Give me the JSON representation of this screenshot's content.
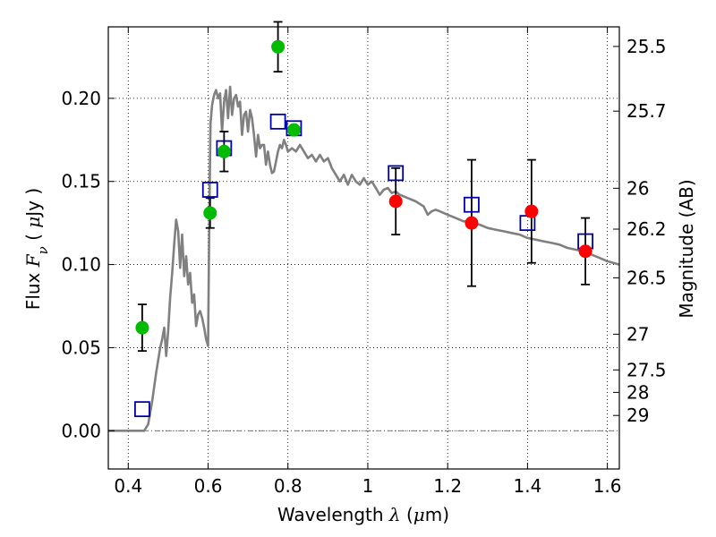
{
  "chart_data": {
    "type": "scatter",
    "title": "",
    "xlabel": {
      "text": "Wavelength",
      "symbol": "λ",
      "unit_open": "(",
      "unit_mu": "μ",
      "unit_rest": "m)"
    },
    "ylabel": {
      "text": "Flux",
      "symbol": "F",
      "subscript": "ν",
      "unit_open": "(",
      "unit_mu": "μ",
      "unit_rest": "Jy )"
    },
    "ylabel_right": "Magnitude (AB)",
    "xlim": [
      0.35,
      1.63
    ],
    "ylim": [
      -0.023,
      0.243
    ],
    "grid": true,
    "x_ticks": [
      0.4,
      0.6,
      0.8,
      1.0,
      1.2,
      1.4,
      1.6
    ],
    "x_tick_labels": [
      "0.4",
      "0.6",
      "0.8",
      "1",
      "1.2",
      "1.4",
      "1.6"
    ],
    "y_ticks": [
      0.0,
      0.05,
      0.1,
      0.15,
      0.2
    ],
    "y_tick_labels": [
      "0.00",
      "0.05",
      "0.10",
      "0.15",
      "0.20"
    ],
    "mag_ticks": [
      {
        "label": "25.5",
        "flux": 0.2312
      },
      {
        "label": "25.7",
        "flux": 0.1923
      },
      {
        "label": "26",
        "flux": 0.1459
      },
      {
        "label": "26.2",
        "flux": 0.1213
      },
      {
        "label": "26.5",
        "flux": 0.092
      },
      {
        "label": "27",
        "flux": 0.0581
      },
      {
        "label": "27.5",
        "flux": 0.0366
      },
      {
        "label": "28",
        "flux": 0.0231
      },
      {
        "label": "29",
        "flux": 0.0092
      }
    ],
    "zero_line": 0.0,
    "model_spectrum": {
      "color": "#808080",
      "points": [
        [
          0.35,
          0.0
        ],
        [
          0.44,
          0.0
        ],
        [
          0.45,
          0.004
        ],
        [
          0.46,
          0.018
        ],
        [
          0.47,
          0.035
        ],
        [
          0.48,
          0.05
        ],
        [
          0.485,
          0.055
        ],
        [
          0.49,
          0.062
        ],
        [
          0.495,
          0.045
        ],
        [
          0.5,
          0.06
        ],
        [
          0.505,
          0.08
        ],
        [
          0.51,
          0.095
        ],
        [
          0.515,
          0.112
        ],
        [
          0.52,
          0.127
        ],
        [
          0.525,
          0.12
        ],
        [
          0.53,
          0.098
        ],
        [
          0.535,
          0.118
        ],
        [
          0.54,
          0.093
        ],
        [
          0.545,
          0.105
        ],
        [
          0.55,
          0.088
        ],
        [
          0.555,
          0.095
        ],
        [
          0.56,
          0.077
        ],
        [
          0.565,
          0.082
        ],
        [
          0.57,
          0.063
        ],
        [
          0.575,
          0.07
        ],
        [
          0.58,
          0.072
        ],
        [
          0.585,
          0.068
        ],
        [
          0.59,
          0.062
        ],
        [
          0.595,
          0.055
        ],
        [
          0.6,
          0.051
        ],
        [
          0.603,
          0.13
        ],
        [
          0.606,
          0.185
        ],
        [
          0.61,
          0.196
        ],
        [
          0.615,
          0.202
        ],
        [
          0.62,
          0.205
        ],
        [
          0.625,
          0.2
        ],
        [
          0.63,
          0.203
        ],
        [
          0.635,
          0.18
        ],
        [
          0.64,
          0.198
        ],
        [
          0.645,
          0.205
        ],
        [
          0.65,
          0.188
        ],
        [
          0.655,
          0.207
        ],
        [
          0.66,
          0.19
        ],
        [
          0.665,
          0.2
        ],
        [
          0.67,
          0.202
        ],
        [
          0.675,
          0.195
        ],
        [
          0.68,
          0.198
        ],
        [
          0.685,
          0.178
        ],
        [
          0.69,
          0.19
        ],
        [
          0.695,
          0.192
        ],
        [
          0.7,
          0.18
        ],
        [
          0.705,
          0.193
        ],
        [
          0.71,
          0.188
        ],
        [
          0.715,
          0.178
        ],
        [
          0.72,
          0.165
        ],
        [
          0.725,
          0.178
        ],
        [
          0.73,
          0.17
        ],
        [
          0.735,
          0.172
        ],
        [
          0.74,
          0.172
        ],
        [
          0.745,
          0.16
        ],
        [
          0.75,
          0.168
        ],
        [
          0.755,
          0.16
        ],
        [
          0.76,
          0.155
        ],
        [
          0.765,
          0.156
        ],
        [
          0.77,
          0.162
        ],
        [
          0.775,
          0.168
        ],
        [
          0.78,
          0.172
        ],
        [
          0.785,
          0.17
        ],
        [
          0.79,
          0.175
        ],
        [
          0.795,
          0.172
        ],
        [
          0.8,
          0.168
        ],
        [
          0.81,
          0.17
        ],
        [
          0.82,
          0.168
        ],
        [
          0.83,
          0.172
        ],
        [
          0.84,
          0.168
        ],
        [
          0.85,
          0.164
        ],
        [
          0.86,
          0.166
        ],
        [
          0.87,
          0.162
        ],
        [
          0.88,
          0.166
        ],
        [
          0.89,
          0.162
        ],
        [
          0.9,
          0.164
        ],
        [
          0.91,
          0.158
        ],
        [
          0.92,
          0.154
        ],
        [
          0.93,
          0.15
        ],
        [
          0.94,
          0.154
        ],
        [
          0.95,
          0.148
        ],
        [
          0.96,
          0.154
        ],
        [
          0.97,
          0.15
        ],
        [
          0.98,
          0.148
        ],
        [
          0.99,
          0.152
        ],
        [
          1.0,
          0.148
        ],
        [
          1.01,
          0.15
        ],
        [
          1.02,
          0.146
        ],
        [
          1.03,
          0.142
        ],
        [
          1.04,
          0.145
        ],
        [
          1.05,
          0.146
        ],
        [
          1.06,
          0.143
        ],
        [
          1.07,
          0.144
        ],
        [
          1.08,
          0.142
        ],
        [
          1.1,
          0.14
        ],
        [
          1.12,
          0.138
        ],
        [
          1.14,
          0.135
        ],
        [
          1.15,
          0.13
        ],
        [
          1.16,
          0.132
        ],
        [
          1.17,
          0.133
        ],
        [
          1.18,
          0.132
        ],
        [
          1.2,
          0.13
        ],
        [
          1.22,
          0.128
        ],
        [
          1.24,
          0.126
        ],
        [
          1.25,
          0.126
        ],
        [
          1.26,
          0.125
        ],
        [
          1.28,
          0.124
        ],
        [
          1.3,
          0.122
        ],
        [
          1.32,
          0.121
        ],
        [
          1.34,
          0.12
        ],
        [
          1.36,
          0.119
        ],
        [
          1.38,
          0.118
        ],
        [
          1.4,
          0.116
        ],
        [
          1.42,
          0.115
        ],
        [
          1.44,
          0.114
        ],
        [
          1.46,
          0.113
        ],
        [
          1.48,
          0.112
        ],
        [
          1.5,
          0.11
        ],
        [
          1.52,
          0.109
        ],
        [
          1.54,
          0.108
        ],
        [
          1.56,
          0.106
        ],
        [
          1.58,
          0.104
        ],
        [
          1.6,
          0.102
        ],
        [
          1.63,
          0.1
        ]
      ]
    },
    "model_photometry": {
      "color": "#0000aa",
      "marker": "open-square",
      "points": [
        {
          "x": 0.435,
          "y": 0.013
        },
        {
          "x": 0.605,
          "y": 0.145
        },
        {
          "x": 0.64,
          "y": 0.17
        },
        {
          "x": 0.775,
          "y": 0.186
        },
        {
          "x": 0.815,
          "y": 0.182
        },
        {
          "x": 1.07,
          "y": 0.155
        },
        {
          "x": 1.26,
          "y": 0.136
        },
        {
          "x": 1.4,
          "y": 0.125
        },
        {
          "x": 1.545,
          "y": 0.114
        }
      ]
    },
    "series": [
      {
        "color": "#00bb00",
        "points": [
          {
            "x": 0.435,
            "y": 0.062,
            "err": 0.014
          },
          {
            "x": 0.605,
            "y": 0.131,
            "err": 0.009
          },
          {
            "x": 0.64,
            "y": 0.168,
            "err": 0.012
          },
          {
            "x": 0.775,
            "y": 0.231,
            "err": 0.015
          },
          {
            "x": 0.815,
            "y": 0.181,
            "err": 0.0
          }
        ]
      },
      {
        "color": "#ff0000",
        "points": [
          {
            "x": 1.07,
            "y": 0.138,
            "err": 0.02
          },
          {
            "x": 1.26,
            "y": 0.125,
            "err": 0.038
          },
          {
            "x": 1.41,
            "y": 0.132,
            "err": 0.031
          },
          {
            "x": 1.545,
            "y": 0.108,
            "err": 0.02
          }
        ]
      }
    ]
  }
}
